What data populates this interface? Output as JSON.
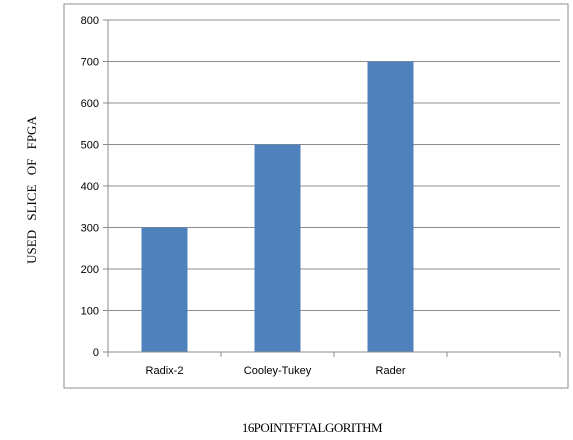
{
  "chart_data": {
    "type": "bar",
    "categories": [
      "Radix-2",
      "Cooley-Tukey",
      "Rader"
    ],
    "values": [
      300,
      500,
      700
    ],
    "title": "",
    "xlabel": "16 POINT FFT ALGORITHM",
    "ylabel": "USED SLICE OF FPGA",
    "ylim": [
      0,
      800
    ],
    "yticks": [
      0,
      100,
      200,
      300,
      400,
      500,
      600,
      700,
      800
    ],
    "grid": "horizontal",
    "legend": "none",
    "bar_color": "#4f81bd"
  }
}
